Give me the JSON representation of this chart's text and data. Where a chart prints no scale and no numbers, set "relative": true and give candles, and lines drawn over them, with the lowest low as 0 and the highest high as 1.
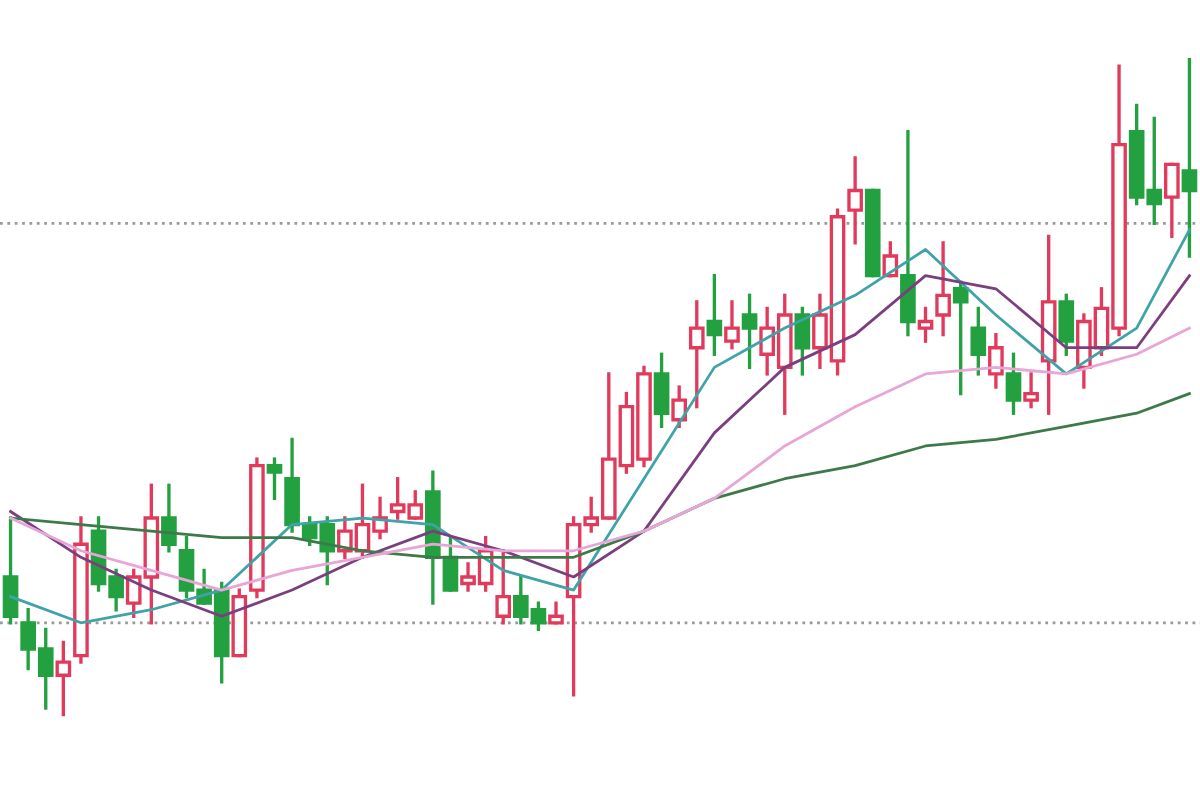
{
  "chart_data": {
    "type": "candlestick",
    "relative": true,
    "grid": false,
    "categories": [
      null,
      null,
      null,
      null,
      null,
      null,
      null,
      null,
      null,
      null,
      null,
      null,
      null,
      null,
      null,
      null,
      null,
      null,
      null,
      null,
      null,
      null,
      null,
      null,
      null,
      null,
      null,
      null,
      null,
      null,
      null,
      null,
      null,
      null,
      null,
      null,
      null,
      null,
      null,
      null,
      null,
      null,
      null,
      null,
      null,
      null,
      null,
      null,
      null,
      null,
      null,
      null,
      null,
      null,
      null,
      null,
      null,
      null,
      null,
      null,
      null,
      null,
      null,
      null,
      null,
      null,
      null,
      null
    ],
    "ohlc": [
      [
        0.21,
        0.3,
        0.14,
        0.15
      ],
      [
        0.14,
        0.16,
        0.07,
        0.1
      ],
      [
        0.1,
        0.13,
        0.01,
        0.06
      ],
      [
        0.06,
        0.11,
        0,
        0.08
      ],
      [
        0.09,
        0.3,
        0.08,
        0.26
      ],
      [
        0.28,
        0.3,
        0.19,
        0.2
      ],
      [
        0.21,
        0.22,
        0.16,
        0.18
      ],
      [
        0.17,
        0.22,
        0.15,
        0.21
      ],
      [
        0.21,
        0.35,
        0.14,
        0.3
      ],
      [
        0.3,
        0.35,
        0.25,
        0.26
      ],
      [
        0.25,
        0.27,
        0.18,
        0.19
      ],
      [
        0.19,
        0.22,
        0.17,
        0.17
      ],
      [
        0.19,
        0.2,
        0.05,
        0.09
      ],
      [
        0.09,
        0.19,
        0.09,
        0.18
      ],
      [
        0.19,
        0.39,
        0.18,
        0.38
      ],
      [
        0.38,
        0.39,
        0.33,
        0.37
      ],
      [
        0.36,
        0.42,
        0.28,
        0.29
      ],
      [
        0.29,
        0.3,
        0.26,
        0.27
      ],
      [
        0.29,
        0.3,
        0.2,
        0.25
      ],
      [
        0.25,
        0.3,
        0.24,
        0.28
      ],
      [
        0.25,
        0.35,
        0.24,
        0.29
      ],
      [
        0.28,
        0.33,
        0.27,
        0.3
      ],
      [
        0.31,
        0.36,
        0.3,
        0.32
      ],
      [
        0.3,
        0.34,
        0.3,
        0.32
      ],
      [
        0.34,
        0.37,
        0.17,
        0.24
      ],
      [
        0.24,
        0.27,
        0.19,
        0.19
      ],
      [
        0.2,
        0.23,
        0.19,
        0.21
      ],
      [
        0.2,
        0.27,
        0.19,
        0.25
      ],
      [
        0.15,
        0.25,
        0.14,
        0.18
      ],
      [
        0.18,
        0.21,
        0.14,
        0.15
      ],
      [
        0.16,
        0.17,
        0.13,
        0.14
      ],
      [
        0.14,
        0.17,
        0.14,
        0.15
      ],
      [
        0.18,
        0.3,
        0.03,
        0.29
      ],
      [
        0.29,
        0.33,
        0.28,
        0.3
      ],
      [
        0.3,
        0.52,
        0.3,
        0.39
      ],
      [
        0.38,
        0.49,
        0.37,
        0.47
      ],
      [
        0.39,
        0.53,
        0.38,
        0.52
      ],
      [
        0.52,
        0.55,
        0.44,
        0.46
      ],
      [
        0.45,
        0.5,
        0.44,
        0.48
      ],
      [
        0.56,
        0.63,
        0.47,
        0.59
      ],
      [
        0.6,
        0.67,
        0.55,
        0.58
      ],
      [
        0.57,
        0.63,
        0.56,
        0.59
      ],
      [
        0.61,
        0.64,
        0.53,
        0.59
      ],
      [
        0.55,
        0.62,
        0.52,
        0.59
      ],
      [
        0.53,
        0.64,
        0.46,
        0.61
      ],
      [
        0.61,
        0.62,
        0.52,
        0.56
      ],
      [
        0.56,
        0.64,
        0.53,
        0.61
      ],
      [
        0.54,
        0.77,
        0.52,
        0.76
      ],
      [
        0.77,
        0.85,
        0.72,
        0.8
      ],
      [
        0.8,
        0.8,
        0.67,
        0.67
      ],
      [
        0.67,
        0.72,
        0.67,
        0.7
      ],
      [
        0.67,
        0.89,
        0.58,
        0.6
      ],
      [
        0.59,
        0.62,
        0.57,
        0.6
      ],
      [
        0.61,
        0.72,
        0.58,
        0.64
      ],
      [
        0.65,
        0.66,
        0.49,
        0.63
      ],
      [
        0.59,
        0.62,
        0.52,
        0.55
      ],
      [
        0.52,
        0.58,
        0.5,
        0.56
      ],
      [
        0.52,
        0.55,
        0.46,
        0.48
      ],
      [
        0.48,
        0.52,
        0.47,
        0.49
      ],
      [
        0.54,
        0.73,
        0.46,
        0.63
      ],
      [
        0.63,
        0.64,
        0.55,
        0.57
      ],
      [
        0.53,
        0.61,
        0.5,
        0.6
      ],
      [
        0.56,
        0.65,
        0.55,
        0.62
      ],
      [
        0.59,
        0.99,
        0.58,
        0.87
      ],
      [
        0.89,
        0.93,
        0.78,
        0.79
      ],
      [
        0.8,
        0.91,
        0.75,
        0.78
      ],
      [
        0.79,
        0.84,
        0.73,
        0.84
      ],
      [
        0.83,
        1,
        0.7,
        0.8
      ]
    ],
    "colors": [
      "#23a040",
      "#23a040",
      "#23a040",
      "#e03a5c",
      "#e03a5c",
      "#23a040",
      "#23a040",
      "#e03a5c",
      "#e03a5c",
      "#23a040",
      "#23a040",
      "#23a040",
      "#23a040",
      "#e03a5c",
      "#e03a5c",
      "#23a040",
      "#23a040",
      "#23a040",
      "#23a040",
      "#e03a5c",
      "#e03a5c",
      "#e03a5c",
      "#e03a5c",
      "#e03a5c",
      "#23a040",
      "#23a040",
      "#e03a5c",
      "#e03a5c",
      "#e03a5c",
      "#23a040",
      "#23a040",
      "#e03a5c",
      "#e03a5c",
      "#e03a5c",
      "#e03a5c",
      "#e03a5c",
      "#e03a5c",
      "#23a040",
      "#e03a5c",
      "#e03a5c",
      "#23a040",
      "#e03a5c",
      "#23a040",
      "#e03a5c",
      "#e03a5c",
      "#23a040",
      "#e03a5c",
      "#e03a5c",
      "#e03a5c",
      "#23a040",
      "#e03a5c",
      "#23a040",
      "#e03a5c",
      "#e03a5c",
      "#23a040",
      "#23a040",
      "#e03a5c",
      "#23a040",
      "#e03a5c",
      "#e03a5c",
      "#23a040",
      "#e03a5c",
      "#e03a5c",
      "#e03a5c",
      "#23a040",
      "#23a040",
      "#e03a5c",
      "#23a040"
    ],
    "series": [
      {
        "type": "line",
        "color": "#3fa3a8",
        "values": [
          0.18,
          null,
          null,
          null,
          0.14,
          null,
          null,
          null,
          0.16,
          null,
          null,
          null,
          0.19,
          null,
          null,
          null,
          0.29,
          null,
          null,
          null,
          0.3,
          null,
          null,
          null,
          0.29,
          null,
          null,
          null,
          0.22,
          null,
          null,
          null,
          0.19,
          null,
          null,
          null,
          0.36,
          null,
          null,
          null,
          0.53,
          null,
          null,
          null,
          0.59,
          null,
          null,
          null,
          0.64,
          null,
          null,
          null,
          0.71,
          null,
          null,
          null,
          0.61,
          null,
          null,
          null,
          0.52,
          null,
          null,
          null,
          0.59,
          null,
          null,
          0.74
        ]
      },
      {
        "type": "line",
        "color": "#7b3f7f",
        "values": [
          0.31,
          null,
          null,
          null,
          0.24,
          null,
          null,
          null,
          0.19,
          null,
          null,
          null,
          0.15,
          null,
          null,
          null,
          0.19,
          null,
          null,
          null,
          0.24,
          null,
          null,
          null,
          0.28,
          null,
          null,
          null,
          0.25,
          null,
          null,
          null,
          0.21,
          null,
          null,
          null,
          0.28,
          null,
          null,
          null,
          0.43,
          null,
          null,
          null,
          0.53,
          null,
          null,
          null,
          0.58,
          null,
          null,
          null,
          0.67,
          null,
          null,
          null,
          0.65,
          null,
          null,
          null,
          0.56,
          null,
          null,
          null,
          0.56,
          null,
          null,
          0.67
        ]
      },
      {
        "type": "line",
        "color": "#3c7a4a",
        "values": [
          0.3,
          null,
          null,
          null,
          0.29,
          null,
          null,
          null,
          0.28,
          null,
          null,
          null,
          0.27,
          null,
          null,
          null,
          0.27,
          null,
          null,
          null,
          0.25,
          null,
          null,
          null,
          0.24,
          null,
          null,
          null,
          0.24,
          null,
          null,
          null,
          0.24,
          null,
          null,
          null,
          0.28,
          null,
          null,
          null,
          0.33,
          null,
          null,
          null,
          0.36,
          null,
          null,
          null,
          0.38,
          null,
          null,
          null,
          0.41,
          null,
          null,
          null,
          0.42,
          null,
          null,
          null,
          0.44,
          null,
          null,
          null,
          0.46,
          null,
          null,
          0.49
        ]
      },
      {
        "type": "line",
        "color": "#e7a6d6",
        "values": [
          0.3,
          null,
          null,
          null,
          0.25,
          null,
          null,
          null,
          0.22,
          null,
          null,
          null,
          0.19,
          null,
          null,
          null,
          0.22,
          null,
          null,
          null,
          0.24,
          null,
          null,
          null,
          0.26,
          null,
          null,
          null,
          0.25,
          null,
          null,
          null,
          0.25,
          null,
          null,
          null,
          0.28,
          null,
          null,
          null,
          0.33,
          null,
          null,
          null,
          0.41,
          null,
          null,
          null,
          0.47,
          null,
          null,
          null,
          0.52,
          null,
          null,
          null,
          0.53,
          null,
          null,
          null,
          0.52,
          null,
          null,
          null,
          0.55,
          null,
          null,
          0.59
        ]
      }
    ],
    "ref_lines": [
      {
        "axis": "y",
        "value": 0.75,
        "color": "#9a9a9a",
        "line_style": "dotted"
      },
      {
        "axis": "y",
        "value": 0.14,
        "color": "#9a9a9a",
        "line_style": "dotted"
      }
    ]
  }
}
